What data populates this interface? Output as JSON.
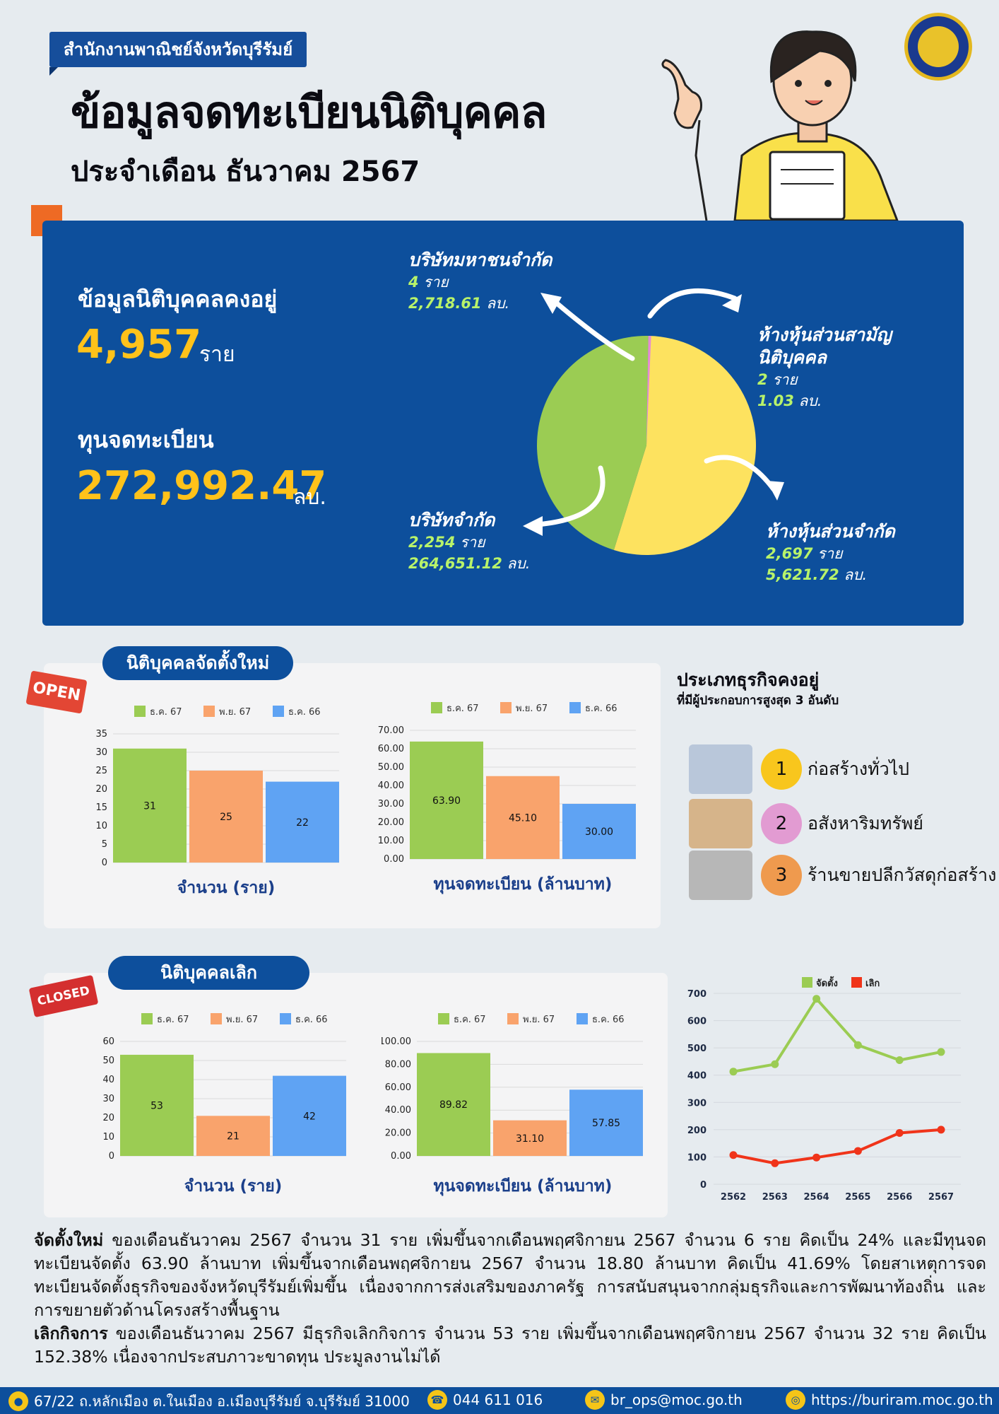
{
  "header": {
    "org_name": "สำนักงานพาณิชย์จังหวัดบุรีรัมย์",
    "title": "ข้อมูลจดทะเบียนนิติบุคคล",
    "subtitle": "ประจำเดือน ธันวาคม 2567"
  },
  "summary": {
    "existing_label": "ข้อมูลนิติบุคคลคงอยู่",
    "existing_value": "4,957",
    "existing_unit": "ราย",
    "capital_label": "ทุนจดทะเบียน",
    "capital_value": "272,992.47",
    "capital_unit": "ลบ."
  },
  "pie": {
    "slices": [
      {
        "name": "ห้างหุ้นส่วนสามัญนิติบุคคล",
        "name_line1": "ห้างหุ้นส่วนสามัญ",
        "name_line2": "นิติบุคคล",
        "count": 2,
        "count_text": "2",
        "capital_text": "1.03",
        "color": "#4d90e8"
      },
      {
        "name": "ห้างหุ้นส่วนจำกัด",
        "count": 2697,
        "count_text": "2,697",
        "capital_text": "5,621.72",
        "color": "#fde25f"
      },
      {
        "name": "บริษัทจำกัด",
        "count": 2254,
        "count_text": "2,254",
        "capital_text": "264,651.12",
        "color": "#9bcc53"
      },
      {
        "name": "บริษัทมหาชนจำกัด",
        "count": 4,
        "count_text": "4",
        "capital_text": "2,718.61",
        "color": "#e58ad3"
      }
    ],
    "unit_count": "ราย",
    "unit_capital": "ลบ."
  },
  "section_open": {
    "title": "นิติบุคคลจัดตั้งใหม่",
    "sign": "OPEN"
  },
  "section_closed": {
    "title": "นิติบุคคลเลิก",
    "sign": "CLOSED"
  },
  "top3": {
    "title": "ประเภทธุรกิจคงอยู่",
    "subtitle": "ที่มีผู้ประกอบการสูงสุด 3 อันดับ",
    "items": [
      {
        "rank": "1",
        "label": "ก่อสร้างทั่วไป",
        "color": "#f8c61d"
      },
      {
        "rank": "2",
        "label": "อสังหาริมทรัพย์",
        "color": "#e29bd2"
      },
      {
        "rank": "3",
        "label": "ร้านขายปลีกวัสดุก่อสร้าง",
        "color": "#ef9a4e"
      }
    ]
  },
  "chart_data": [
    {
      "type": "bar",
      "id": "open_count",
      "title": "จำนวน (ราย)",
      "categories": [
        "ธ.ค. 67",
        "พ.ย. 67",
        "ธ.ค. 66"
      ],
      "values": [
        31,
        25,
        22
      ],
      "labels": [
        "31",
        "25",
        "22"
      ],
      "ylim": [
        0,
        35
      ],
      "ticks": [
        "0",
        "5",
        "10",
        "15",
        "20",
        "25",
        "30",
        "35"
      ],
      "colors": [
        "#9bcc53",
        "#f9a36c",
        "#5fa3f3"
      ]
    },
    {
      "type": "bar",
      "id": "open_capital",
      "title": "ทุนจดทะเบียน (ล้านบาท)",
      "categories": [
        "ธ.ค. 67",
        "พ.ย. 67",
        "ธ.ค. 66"
      ],
      "values": [
        63.9,
        45.1,
        30.0
      ],
      "labels": [
        "63.90",
        "45.10",
        "30.00"
      ],
      "ylim": [
        0,
        70
      ],
      "ticks": [
        "0.00",
        "10.00",
        "20.00",
        "30.00",
        "40.00",
        "50.00",
        "60.00",
        "70.00"
      ],
      "colors": [
        "#9bcc53",
        "#f9a36c",
        "#5fa3f3"
      ]
    },
    {
      "type": "bar",
      "id": "closed_count",
      "title": "จำนวน (ราย)",
      "categories": [
        "ธ.ค. 67",
        "พ.ย. 67",
        "ธ.ค. 66"
      ],
      "values": [
        53,
        21,
        42
      ],
      "labels": [
        "53",
        "21",
        "42"
      ],
      "ylim": [
        0,
        60
      ],
      "ticks": [
        "0",
        "10",
        "20",
        "30",
        "40",
        "50",
        "60"
      ],
      "colors": [
        "#9bcc53",
        "#f9a36c",
        "#5fa3f3"
      ]
    },
    {
      "type": "bar",
      "id": "closed_capital",
      "title": "ทุนจดทะเบียน (ล้านบาท)",
      "categories": [
        "ธ.ค. 67",
        "พ.ย. 67",
        "ธ.ค. 66"
      ],
      "values": [
        89.82,
        31.1,
        57.85
      ],
      "labels": [
        "89.82",
        "31.10",
        "57.85"
      ],
      "ylim": [
        0,
        100
      ],
      "ticks": [
        "0.00",
        "20.00",
        "40.00",
        "60.00",
        "80.00",
        "100.00"
      ],
      "colors": [
        "#9bcc53",
        "#f9a36c",
        "#5fa3f3"
      ]
    },
    {
      "type": "line",
      "id": "trend",
      "x": [
        "2562",
        "2563",
        "2564",
        "2565",
        "2566",
        "2567"
      ],
      "series": [
        {
          "name": "จัดตั้ง",
          "values": [
            413,
            440,
            680,
            510,
            455,
            485
          ],
          "color": "#9bcc53"
        },
        {
          "name": "เลิก",
          "values": [
            107,
            77,
            98,
            122,
            188,
            200
          ],
          "color": "#f0341a"
        }
      ],
      "ylim": [
        0,
        700
      ],
      "ticks": [
        "0",
        "100",
        "200",
        "300",
        "400",
        "500",
        "600",
        "700"
      ]
    }
  ],
  "paragraph": {
    "open_lead": "จัดตั้งใหม่",
    "open_text": " ของเดือนธันวาคม 2567 จำนวน 31 ราย เพิ่มขึ้นจากเดือนพฤศจิกายน 2567 จำนวน 6 ราย คิดเป็น 24% และมีทุนจดทะเบียนจัดตั้ง 63.90 ล้านบาท เพิ่มขึ้นจากเดือนพฤศจิกายน 2567 จำนวน 18.80 ล้านบาท คิดเป็น 41.69% โดยสาเหตุการจดทะเบียนจัดตั้งธุรกิจของจังหวัดบุรีรัมย์เพิ่มขึ้น เนื่องจากการส่งเสริมของภาครัฐ การสนับสนุนจากกลุ่มธุรกิจและการพัฒนาท้องถิ่น และการขยายตัวด้านโครงสร้างพื้นฐาน",
    "closed_lead": "เลิกกิจการ",
    "closed_text": " ของเดือนธันวาคม 2567 มีธุรกิจเลิกกิจการ จำนวน 53 ราย เพิ่มขึ้นจากเดือนพฤศจิกายน 2567 จำนวน 32 ราย คิดเป็น 152.38% เนื่องจากประสบภาวะขาดทุน ประมูลงานไม่ได้"
  },
  "footer": {
    "address": "67/22 ถ.หลักเมือง ต.ในเมือง อ.เมืองบุรีรัมย์ จ.บุรีรัมย์ 31000",
    "phone": "044 611 016",
    "email": "br_ops@moc.go.th",
    "website": "https://buriram.moc.go.th"
  }
}
